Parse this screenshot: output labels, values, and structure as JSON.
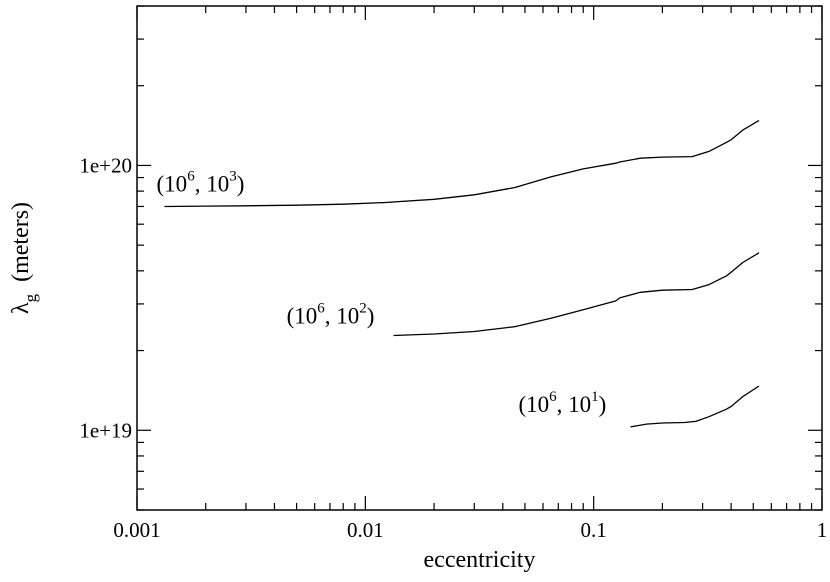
{
  "chart_data": {
    "type": "line",
    "xlabel": "eccentricity",
    "ylabel": {
      "symbol": "λ",
      "subscript": "g",
      "unit": "(meters)"
    },
    "x_scale": "log",
    "y_scale": "log",
    "xlim": [
      0.001,
      1
    ],
    "ylim": [
      5e+18,
      4e+20
    ],
    "x_ticks": [
      {
        "value": 0.001,
        "label": "0.001"
      },
      {
        "value": 0.01,
        "label": "0.01"
      },
      {
        "value": 0.1,
        "label": "0.1"
      },
      {
        "value": 1,
        "label": "1"
      }
    ],
    "y_ticks": [
      {
        "value": 1e+19,
        "label": "1e+19"
      },
      {
        "value": 1e+20,
        "label": "1e+20"
      }
    ],
    "grid": false,
    "legend": "none",
    "series": [
      {
        "label": {
          "base": "(10",
          "exp1": "6",
          "mid": ", 10",
          "exp2": "3",
          "end": ")"
        },
        "points": [
          [
            0.00132,
            7e+19
          ],
          [
            0.002,
            7.02e+19
          ],
          [
            0.003,
            7.04e+19
          ],
          [
            0.005,
            7.08e+19
          ],
          [
            0.008,
            7.14e+19
          ],
          [
            0.012,
            7.24e+19
          ],
          [
            0.02,
            7.45e+19
          ],
          [
            0.03,
            7.75e+19
          ],
          [
            0.045,
            8.25e+19
          ],
          [
            0.065,
            9.05e+19
          ],
          [
            0.09,
            9.7e+19
          ],
          [
            0.125,
            1.02e+20
          ],
          [
            0.13,
            1.03e+20
          ],
          [
            0.16,
            1.065e+20
          ],
          [
            0.2,
            1.075e+20
          ],
          [
            0.27,
            1.08e+20
          ],
          [
            0.32,
            1.13e+20
          ],
          [
            0.38,
            1.22e+20
          ],
          [
            0.4,
            1.25e+20
          ],
          [
            0.45,
            1.36e+20
          ],
          [
            0.53,
            1.48e+20
          ]
        ]
      },
      {
        "label": {
          "base": "(10",
          "exp1": "6",
          "mid": ", 10",
          "exp2": "2",
          "end": ")"
        },
        "points": [
          [
            0.0133,
            2.28e+19
          ],
          [
            0.02,
            2.31e+19
          ],
          [
            0.03,
            2.36e+19
          ],
          [
            0.045,
            2.46e+19
          ],
          [
            0.065,
            2.65e+19
          ],
          [
            0.09,
            2.85e+19
          ],
          [
            0.125,
            3.08e+19
          ],
          [
            0.13,
            3.16e+19
          ],
          [
            0.16,
            3.32e+19
          ],
          [
            0.2,
            3.38e+19
          ],
          [
            0.27,
            3.4e+19
          ],
          [
            0.32,
            3.55e+19
          ],
          [
            0.38,
            3.82e+19
          ],
          [
            0.4,
            3.95e+19
          ],
          [
            0.45,
            4.3e+19
          ],
          [
            0.53,
            4.68e+19
          ]
        ]
      },
      {
        "label": {
          "base": "(10",
          "exp1": "6",
          "mid": ", 10",
          "exp2": "1",
          "end": ")"
        },
        "points": [
          [
            0.145,
            1.03e+19
          ],
          [
            0.17,
            1.055e+19
          ],
          [
            0.2,
            1.065e+19
          ],
          [
            0.25,
            1.07e+19
          ],
          [
            0.28,
            1.08e+19
          ],
          [
            0.32,
            1.125e+19
          ],
          [
            0.38,
            1.2e+19
          ],
          [
            0.4,
            1.23e+19
          ],
          [
            0.45,
            1.34e+19
          ],
          [
            0.53,
            1.47e+19
          ]
        ]
      }
    ]
  }
}
